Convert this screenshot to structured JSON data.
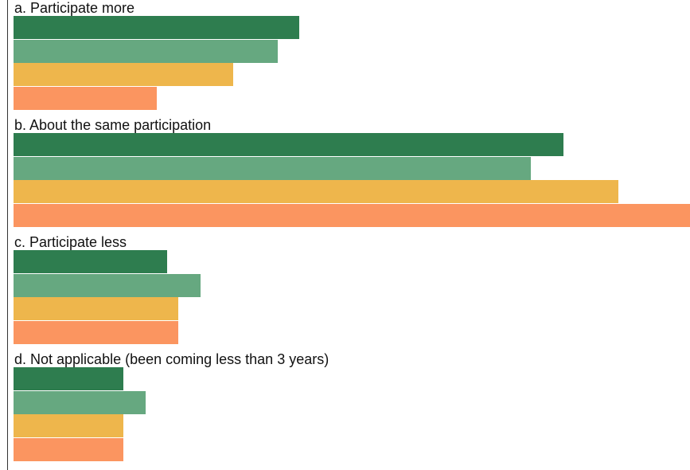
{
  "chart_data": {
    "type": "bar",
    "orientation": "horizontal",
    "categories": [
      "a. Participate more",
      "b. About the same participation",
      "c. Participate less",
      "d. Not applicable (been coming less than 3 years)"
    ],
    "series": [
      {
        "color": "#2e7d4f",
        "values": [
          26,
          50,
          14,
          10
        ]
      },
      {
        "color": "#66a880",
        "values": [
          24,
          47,
          17,
          12
        ]
      },
      {
        "color": "#eeb64c",
        "values": [
          20,
          55,
          15,
          10
        ]
      },
      {
        "color": "#fb9560",
        "values": [
          13,
          61.5,
          15,
          10
        ]
      }
    ],
    "title": "",
    "xlabel": "",
    "ylabel": "",
    "xlim": [
      0,
      61.5
    ],
    "grid": false,
    "legend": "none"
  }
}
